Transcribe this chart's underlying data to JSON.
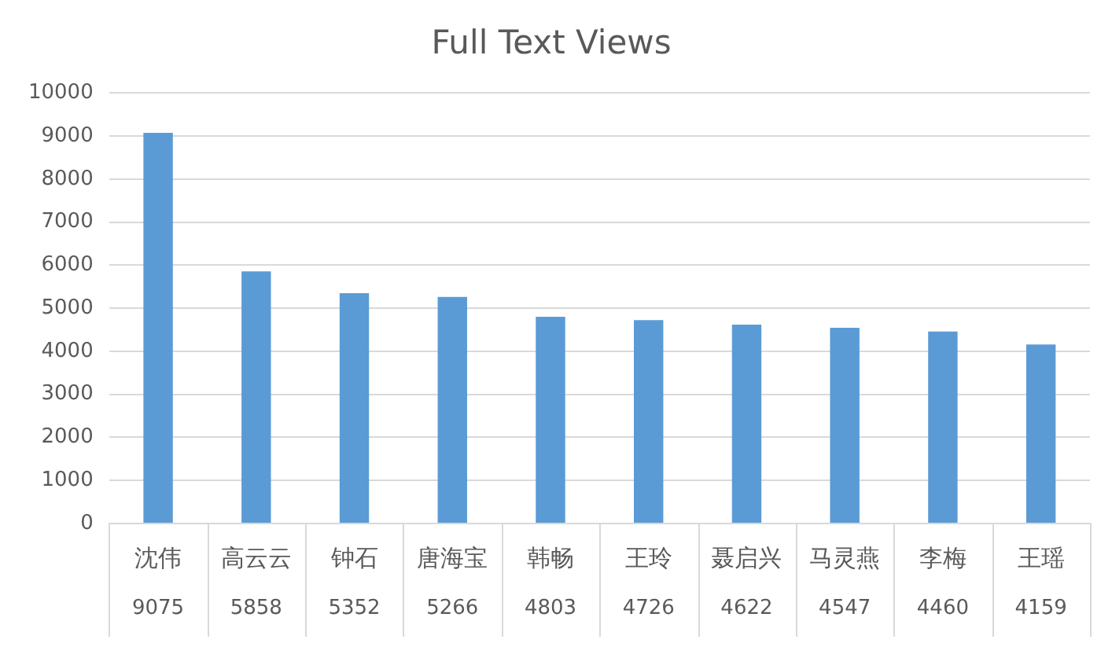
{
  "chart_data": {
    "type": "bar",
    "title": "Full Text Views",
    "categories": [
      "沈伟",
      "高云云",
      "钟石",
      "唐海宝",
      "韩畅",
      "王玲",
      "聂启兴",
      "马灵燕",
      "李梅",
      "王瑶"
    ],
    "values": [
      9075,
      5858,
      5352,
      5266,
      4803,
      4726,
      4622,
      4547,
      4460,
      4159
    ],
    "color": "#5b9bd5",
    "ylim": [
      0,
      10000
    ],
    "yticks": [
      0,
      1000,
      2000,
      3000,
      4000,
      5000,
      6000,
      7000,
      8000,
      9000,
      10000
    ],
    "grid": "y",
    "legend": false,
    "data_labels": true
  }
}
